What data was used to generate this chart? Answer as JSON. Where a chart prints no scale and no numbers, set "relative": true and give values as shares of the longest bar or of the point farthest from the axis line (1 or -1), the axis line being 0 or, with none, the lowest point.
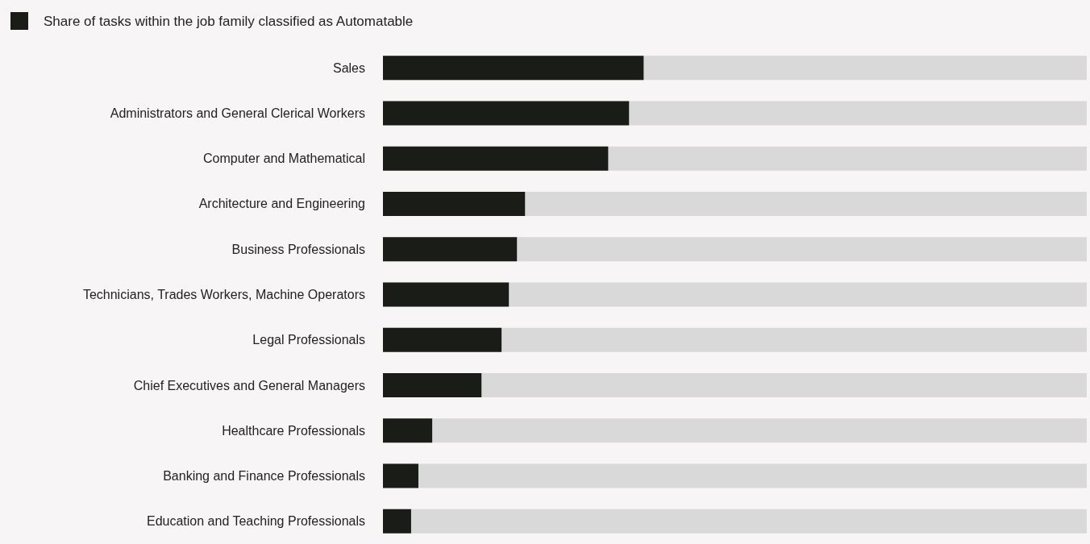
{
  "chart_data": {
    "type": "bar",
    "orientation": "horizontal",
    "relative": true,
    "legend": "top left",
    "categories": [
      "Sales",
      "Administrators and General Clerical Workers",
      "Computer and Mathematical",
      "Architecture and Engineering",
      "Business Professionals",
      "Technicians, Trades Workers, Machine Operators",
      "Legal Professionals",
      "Chief Executives and General Managers",
      "Healthcare Professionals",
      "Banking and Finance Professionals",
      "Education and Teaching Professionals"
    ],
    "series": [
      {
        "name": "Share of tasks within the job family classified as Automatable",
        "color": "#1a1c17",
        "values": [
          1,
          0.944,
          0.864,
          0.545,
          0.514,
          0.483,
          0.455,
          0.378,
          0.189,
          0.136,
          0.108
        ]
      }
    ]
  }
}
